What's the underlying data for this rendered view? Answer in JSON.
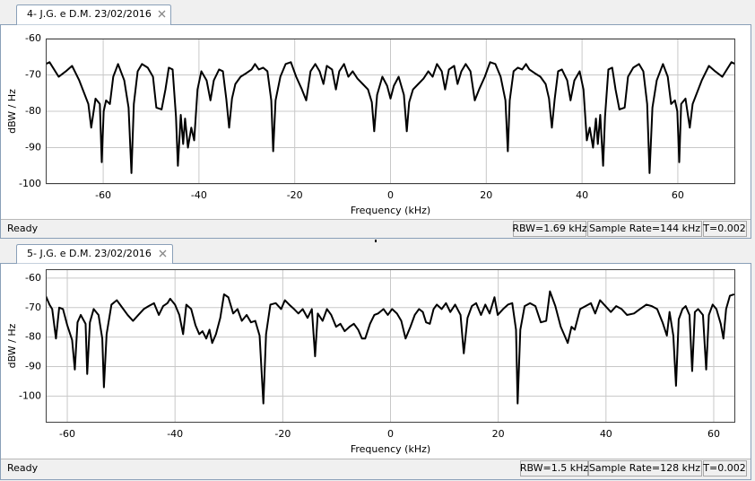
{
  "panels": [
    {
      "tab": "4- J.G. e D.M. 23/02/2016",
      "status": "Ready",
      "rbw": "RBW=1.69 kHz",
      "sample_rate": "Sample Rate=144 kHz",
      "t": "T=0.002"
    },
    {
      "tab": "5- J.G. e D.M. 23/02/2016",
      "status": "Ready",
      "rbw": "RBW=1.5 kHz",
      "sample_rate": "Sample Rate=128 kHz",
      "t": "T=0.002"
    }
  ],
  "chart_data": [
    {
      "type": "line",
      "xlabel": "Frequency (kHz)",
      "ylabel": "dBW / Hz",
      "x": [
        -72,
        -71.2,
        -69.3,
        -67.8,
        -66.5,
        -65,
        -63.1,
        -62.5,
        -61.6,
        -60.7,
        -60.3,
        -59.9,
        -59.4,
        -58.6,
        -57.9,
        -56.9,
        -55.6,
        -54.7,
        -54.1,
        -53.6,
        -52.8,
        -51.9,
        -50.7,
        -49.6,
        -48.9,
        -47.8,
        -47,
        -46.3,
        -45.5,
        -44.8,
        -44.4,
        -43.8,
        -43.3,
        -42.9,
        -42.3,
        -41.6,
        -41,
        -40.3,
        -39.5,
        -38.4,
        -37.6,
        -36.9,
        -35.8,
        -35,
        -34.3,
        -33.7,
        -33.1,
        -32.4,
        -31.3,
        -30.1,
        -29,
        -28.3,
        -27.5,
        -26.6,
        -25.7,
        -24.9,
        -24.5,
        -24,
        -23,
        -21.9,
        -20.8,
        -19.7,
        -18.5,
        -17.6,
        -16.7,
        -15.7,
        -14.8,
        -14,
        -13.3,
        -12.2,
        -11.4,
        -10.7,
        -9.7,
        -8.8,
        -7.9,
        -6.9,
        -5.8,
        -4.7,
        -3.9,
        -3.4,
        -2.8,
        -1.7,
        -0.7,
        0,
        0.7,
        1.7,
        2.8,
        3.4,
        3.9,
        4.7,
        5.8,
        6.9,
        7.9,
        8.8,
        9.7,
        10.7,
        11.4,
        12.2,
        13.3,
        14,
        14.8,
        15.7,
        16.7,
        17.6,
        18.5,
        19.7,
        20.8,
        21.9,
        23,
        24,
        24.5,
        24.9,
        25.7,
        26.6,
        27.5,
        28.3,
        29,
        30.1,
        31.3,
        32.4,
        33.1,
        33.7,
        34.3,
        35,
        35.8,
        36.9,
        37.6,
        38.4,
        39.5,
        40.3,
        41,
        41.6,
        42.3,
        42.9,
        43.3,
        43.8,
        44.4,
        44.8,
        45.5,
        46.3,
        47,
        47.8,
        48.9,
        49.6,
        50.7,
        51.9,
        52.8,
        53.6,
        54.1,
        54.7,
        55.6,
        56.9,
        57.9,
        58.6,
        59.4,
        59.9,
        60.3,
        60.7,
        61.6,
        62.5,
        63.1,
        65,
        66.5,
        67.8,
        69.3,
        71.2,
        72
      ],
      "series": [
        {
          "color": "#000000",
          "values": [
            -67,
            -66.5,
            -70.5,
            -69,
            -67.5,
            -71.5,
            -78,
            -84.5,
            -76.5,
            -78,
            -94,
            -80,
            -77,
            -78,
            -70.5,
            -67,
            -71.5,
            -79,
            -97,
            -78,
            -69,
            -67,
            -68,
            -70.5,
            -79,
            -79.5,
            -74,
            -68,
            -68.5,
            -81.5,
            -95,
            -81,
            -89,
            -82,
            -90,
            -84.5,
            -88,
            -74,
            -69,
            -71.5,
            -77,
            -71.5,
            -68.5,
            -69,
            -76.5,
            -84.5,
            -76.5,
            -72.5,
            -70.5,
            -69.5,
            -68.5,
            -67,
            -68.5,
            -68,
            -69,
            -77,
            -91,
            -77,
            -70.5,
            -67,
            -66.5,
            -70.5,
            -74,
            -77,
            -69,
            -67,
            -69,
            -72.5,
            -67.5,
            -68.5,
            -74,
            -69,
            -67,
            -70.5,
            -69,
            -71,
            -72.5,
            -74,
            -77.5,
            -85.5,
            -75.5,
            -70.5,
            -73,
            -76.5,
            -73,
            -70.5,
            -75.5,
            -85.5,
            -77.5,
            -74,
            -72.5,
            -71,
            -69,
            -70.5,
            -67,
            -69,
            -74,
            -68.5,
            -67.5,
            -72.5,
            -69,
            -67,
            -69,
            -77,
            -74,
            -70.5,
            -66.5,
            -67,
            -70.5,
            -77,
            -91,
            -77,
            -69,
            -68,
            -68.5,
            -67,
            -68.5,
            -69.5,
            -70.5,
            -72.5,
            -76.5,
            -84.5,
            -76.5,
            -69,
            -68.5,
            -71.5,
            -77,
            -71.5,
            -69,
            -74,
            -88,
            -84.5,
            -90,
            -82,
            -89,
            -81,
            -95,
            -81.5,
            -68.5,
            -68,
            -74,
            -79.5,
            -79,
            -70.5,
            -68,
            -67,
            -69,
            -78,
            -97,
            -79,
            -71.5,
            -67,
            -70.5,
            -78,
            -77,
            -80,
            -94,
            -78,
            -76.5,
            -84.5,
            -78,
            -71.5,
            -67.5,
            -69,
            -70.5,
            -66.5,
            -67
          ]
        }
      ],
      "xlim": [
        -72,
        72
      ],
      "ylim": [
        -100,
        -60
      ],
      "xticks": [
        -60,
        -40,
        -20,
        0,
        20,
        40,
        60
      ],
      "yticks": [
        -60,
        -70,
        -80,
        -90,
        -100
      ],
      "grid": true
    },
    {
      "type": "line",
      "xlabel": "Frequency (kHz)",
      "ylabel": "dBW / Hz",
      "x": [
        -64,
        -63.3,
        -62.8,
        -62.1,
        -61.5,
        -60.8,
        -60,
        -59.1,
        -58.6,
        -58.1,
        -57.5,
        -56.6,
        -56.3,
        -55.8,
        -55.1,
        -54.2,
        -53.5,
        -53.2,
        -52.7,
        -51.8,
        -50.8,
        -49.8,
        -48.8,
        -47.8,
        -46.8,
        -45.8,
        -44.9,
        -43.9,
        -43,
        -42.2,
        -41.4,
        -40.9,
        -40,
        -39.2,
        -38.5,
        -37.9,
        -37,
        -36.2,
        -35.5,
        -34.9,
        -34.2,
        -33.6,
        -33.1,
        -32.4,
        -31.6,
        -30.9,
        -30.1,
        -29.2,
        -28.4,
        -27.6,
        -26.7,
        -25.9,
        -25.1,
        -24.3,
        -23.6,
        -23.1,
        -22.3,
        -21.3,
        -20.3,
        -19.6,
        -18.8,
        -17.9,
        -17.1,
        -16.3,
        -15.4,
        -14.6,
        -14,
        -13.5,
        -12.6,
        -11.8,
        -11,
        -10.1,
        -9.3,
        -8.5,
        -7.6,
        -6.8,
        -6,
        -5.3,
        -4.7,
        -3.8,
        -3,
        -2.3,
        -1.3,
        -0.5,
        0.3,
        1.2,
        2,
        2.8,
        3.7,
        4.5,
        5.3,
        6,
        6.6,
        7.3,
        8,
        8.6,
        9.5,
        10.3,
        11.1,
        12,
        13,
        13.6,
        14.3,
        15.1,
        15.9,
        16.8,
        17.6,
        18.4,
        19.3,
        19.9,
        20.9,
        21.8,
        22.6,
        23.3,
        23.6,
        24.1,
        24.9,
        25.9,
        26.9,
        27.9,
        28.9,
        29.6,
        30.6,
        31.6,
        32.2,
        32.9,
        33.6,
        34.2,
        35.2,
        36.2,
        37.2,
        38,
        38.9,
        39.9,
        40.9,
        41.9,
        42.9,
        43.9,
        45.2,
        46.3,
        47.5,
        48.5,
        49.5,
        50.5,
        51.3,
        51.8,
        52.5,
        53,
        53.5,
        54.2,
        54.8,
        55.5,
        56,
        56.5,
        57.1,
        58,
        58.6,
        59.1,
        59.8,
        60.5,
        61.3,
        61.8,
        62.3,
        63,
        63.8
      ],
      "series": [
        {
          "color": "#000000",
          "values": [
            -66,
            -69,
            -70.5,
            -80.5,
            -70,
            -70.5,
            -76,
            -81,
            -91,
            -75,
            -72.5,
            -75.5,
            -92.5,
            -75,
            -70.5,
            -72.5,
            -80.5,
            -97,
            -79,
            -69,
            -67.5,
            -70,
            -72.5,
            -74.5,
            -72.5,
            -70.5,
            -69.5,
            -68.5,
            -72.5,
            -69.5,
            -68.5,
            -67,
            -69,
            -72.5,
            -79,
            -69,
            -70.5,
            -76,
            -79,
            -78,
            -80.5,
            -77.5,
            -82,
            -79,
            -73.5,
            -65.5,
            -66.5,
            -72,
            -70.5,
            -74.5,
            -72.5,
            -75,
            -74.5,
            -79.5,
            -102.5,
            -79,
            -69,
            -68.5,
            -70.5,
            -67.5,
            -69,
            -70.5,
            -72,
            -70.5,
            -73.5,
            -70.5,
            -86.5,
            -72,
            -74.5,
            -70.5,
            -72.5,
            -76.5,
            -75.5,
            -78,
            -76.5,
            -75.5,
            -77.5,
            -80.5,
            -80.5,
            -75.5,
            -72.5,
            -72,
            -70.5,
            -72.5,
            -70.5,
            -72,
            -74.5,
            -80.5,
            -76.5,
            -72.5,
            -70.5,
            -71.5,
            -75,
            -75.5,
            -70.5,
            -69,
            -70.5,
            -68.5,
            -71.5,
            -69,
            -72.5,
            -85.5,
            -73.5,
            -69.5,
            -68.5,
            -72.5,
            -69,
            -72,
            -66.5,
            -72.5,
            -70.5,
            -69,
            -68.5,
            -77.5,
            -102.5,
            -77.5,
            -69.5,
            -68.5,
            -69.5,
            -75,
            -74.5,
            -64.5,
            -69.5,
            -76.5,
            -79,
            -82,
            -76.5,
            -77.5,
            -70.5,
            -69.5,
            -68.5,
            -72,
            -67.5,
            -69.5,
            -71.5,
            -69.5,
            -70.5,
            -72.5,
            -72,
            -70.5,
            -69,
            -69.5,
            -70.5,
            -75,
            -79.5,
            -71.5,
            -79.5,
            -96.5,
            -74,
            -70.5,
            -69.5,
            -72.5,
            -91.5,
            -71.5,
            -70.5,
            -72.5,
            -91,
            -72.5,
            -69,
            -70.5,
            -75.5,
            -80.5,
            -70.5,
            -66,
            -65.5
          ]
        }
      ],
      "xlim": [
        -64,
        64
      ],
      "ylim": [
        -109,
        -57
      ],
      "xticks": [
        -60,
        -40,
        -20,
        0,
        20,
        40,
        60
      ],
      "yticks": [
        -60,
        -70,
        -80,
        -90,
        -100
      ],
      "grid": true
    }
  ]
}
